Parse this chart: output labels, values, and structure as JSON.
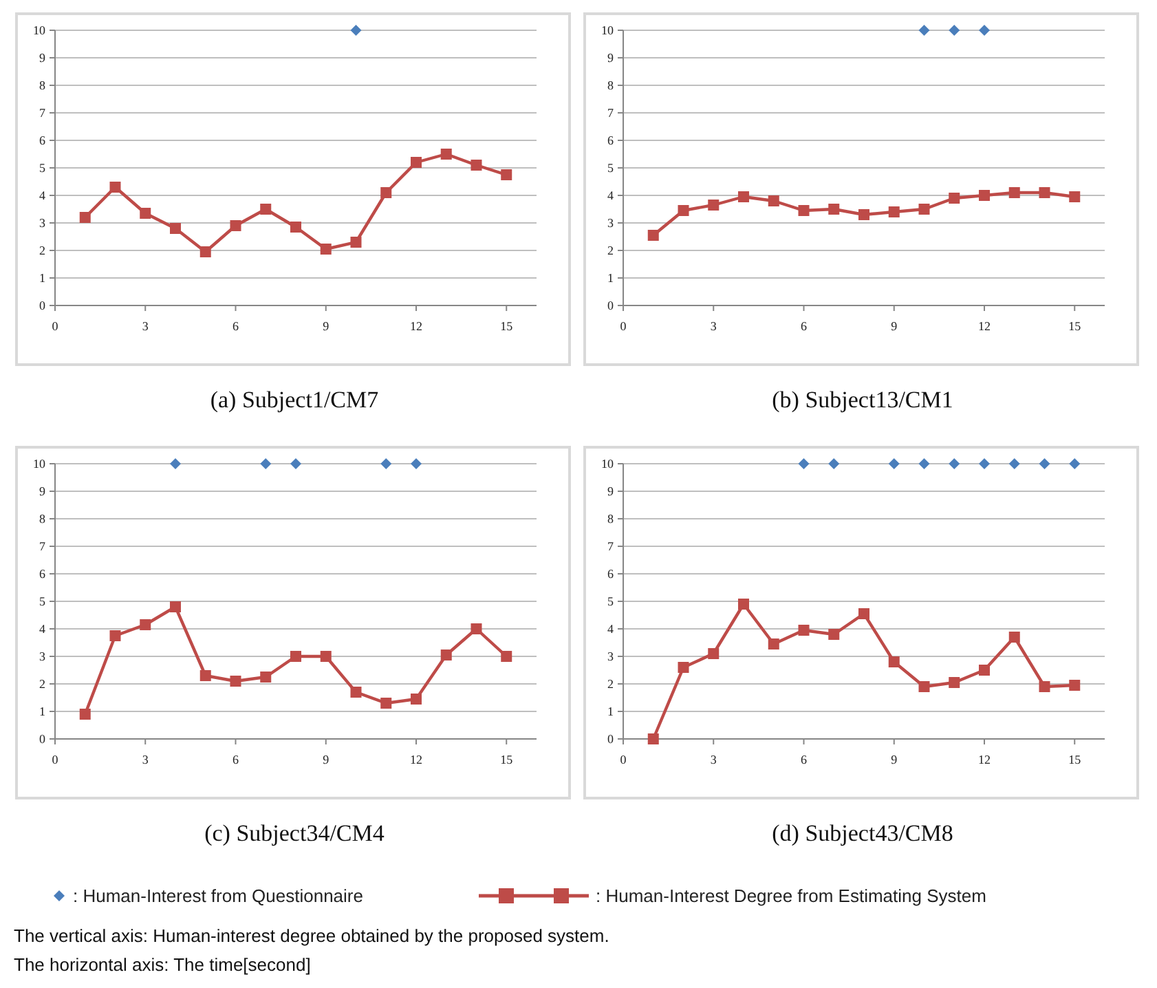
{
  "chart_data": [
    {
      "type": "line",
      "title": "(a) Subject1/CM7",
      "xlim": [
        0,
        16
      ],
      "xticks": [
        0,
        3,
        6,
        9,
        12,
        15
      ],
      "ylim": [
        0,
        10
      ],
      "yticks": [
        0,
        1,
        2,
        3,
        4,
        5,
        6,
        7,
        8,
        9,
        10
      ],
      "grid": "y",
      "series": [
        {
          "type": "scatter",
          "marker": "diamond",
          "color": "#4a7ebb",
          "x": [
            10
          ],
          "values": [
            10
          ]
        },
        {
          "marker": "square",
          "color": "#be4b48",
          "x": [
            1,
            2,
            3,
            4,
            5,
            6,
            7,
            8,
            9,
            10,
            11,
            12,
            13,
            14,
            15
          ],
          "values": [
            3.2,
            4.3,
            3.35,
            2.8,
            1.95,
            2.9,
            3.5,
            2.85,
            2.05,
            2.3,
            4.1,
            5.2,
            5.5,
            5.1,
            4.75
          ]
        }
      ]
    },
    {
      "type": "line",
      "title": "(b) Subject13/CM1",
      "xlim": [
        0,
        16
      ],
      "xticks": [
        0,
        3,
        6,
        9,
        12,
        15
      ],
      "ylim": [
        0,
        10
      ],
      "yticks": [
        0,
        1,
        2,
        3,
        4,
        5,
        6,
        7,
        8,
        9,
        10
      ],
      "grid": "y",
      "series": [
        {
          "type": "scatter",
          "marker": "diamond",
          "color": "#4a7ebb",
          "x": [
            10,
            11,
            12
          ],
          "values": [
            10,
            10,
            10
          ]
        },
        {
          "marker": "square",
          "color": "#be4b48",
          "x": [
            1,
            2,
            3,
            4,
            5,
            6,
            7,
            8,
            9,
            10,
            11,
            12,
            13,
            14,
            15
          ],
          "values": [
            2.55,
            3.45,
            3.65,
            3.95,
            3.8,
            3.45,
            3.5,
            3.3,
            3.4,
            3.5,
            3.9,
            4.0,
            4.1,
            4.1,
            3.95
          ]
        }
      ]
    },
    {
      "type": "line",
      "title": "(c) Subject34/CM4",
      "xlim": [
        0,
        16
      ],
      "xticks": [
        0,
        3,
        6,
        9,
        12,
        15
      ],
      "ylim": [
        0,
        10
      ],
      "yticks": [
        0,
        1,
        2,
        3,
        4,
        5,
        6,
        7,
        8,
        9,
        10
      ],
      "grid": "y",
      "series": [
        {
          "type": "scatter",
          "marker": "diamond",
          "color": "#4a7ebb",
          "x": [
            4,
            7,
            8,
            11,
            12
          ],
          "values": [
            10,
            10,
            10,
            10,
            10
          ]
        },
        {
          "marker": "square",
          "color": "#be4b48",
          "x": [
            1,
            2,
            3,
            4,
            5,
            6,
            7,
            8,
            9,
            10,
            11,
            12,
            13,
            14,
            15
          ],
          "values": [
            0.9,
            3.75,
            4.15,
            4.8,
            2.3,
            2.1,
            2.25,
            3.0,
            3.0,
            1.7,
            1.3,
            1.45,
            3.05,
            4.0,
            3.0
          ]
        }
      ]
    },
    {
      "type": "line",
      "title": "(d) Subject43/CM8",
      "xlim": [
        0,
        16
      ],
      "xticks": [
        0,
        3,
        6,
        9,
        12,
        15
      ],
      "ylim": [
        0,
        10
      ],
      "yticks": [
        0,
        1,
        2,
        3,
        4,
        5,
        6,
        7,
        8,
        9,
        10
      ],
      "grid": "y",
      "legend": "bottom",
      "annotations": [
        "The vertical axis: Human-interest degree obtained by the proposed system.",
        "The horizontal axis: The time[second]"
      ],
      "series": [
        {
          "type": "scatter",
          "marker": "diamond",
          "name": ": Human-Interest from Questionnaire",
          "color": "#4a7ebb",
          "x": [
            6,
            7,
            9,
            10,
            11,
            12,
            13,
            14,
            15
          ],
          "values": [
            10,
            10,
            10,
            10,
            10,
            10,
            10,
            10,
            10
          ]
        },
        {
          "marker": "square",
          "name": ": Human-Interest Degree from Estimating System",
          "color": "#be4b48",
          "x": [
            1,
            2,
            3,
            4,
            5,
            6,
            7,
            8,
            9,
            10,
            11,
            12,
            13,
            14,
            15
          ],
          "values": [
            0,
            2.6,
            3.1,
            4.9,
            3.45,
            3.95,
            3.8,
            4.55,
            2.8,
            1.9,
            2.05,
            2.5,
            3.7,
            1.9,
            1.95
          ]
        }
      ]
    }
  ]
}
